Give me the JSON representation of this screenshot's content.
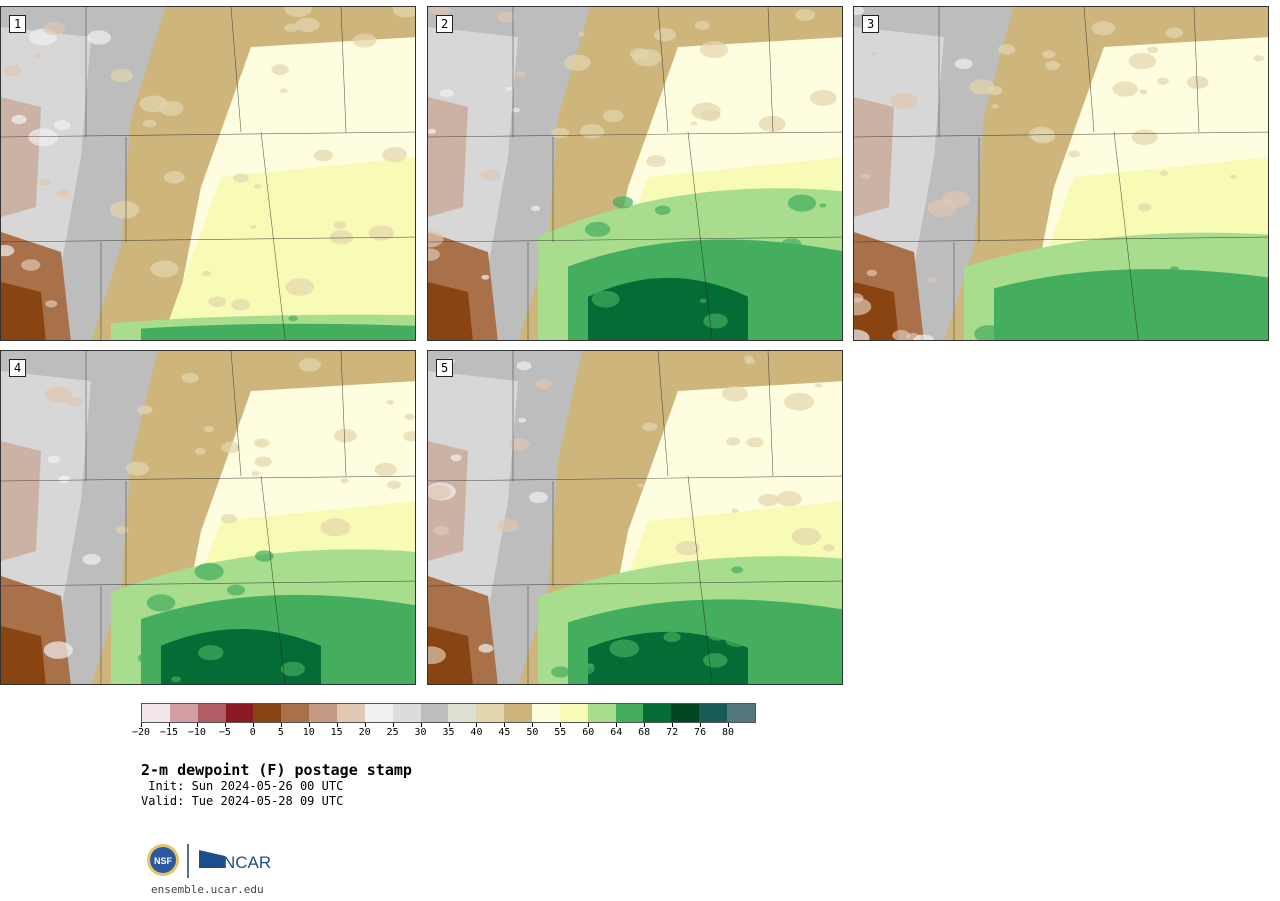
{
  "panels": [
    {
      "label": "1",
      "variant": "dry",
      "green": 0.08
    },
    {
      "label": "2",
      "variant": "wet",
      "green": 0.45
    },
    {
      "label": "3",
      "variant": "mid",
      "green": 0.32
    },
    {
      "label": "4",
      "variant": "wet",
      "green": 0.4
    },
    {
      "label": "5",
      "variant": "mid",
      "green": 0.38
    }
  ],
  "colorbar": {
    "colors": [
      "#f3e6e8",
      "#d29ea3",
      "#b35c65",
      "#8b1a23",
      "#8a4412",
      "#a8714a",
      "#c49a82",
      "#e0c8b4",
      "#f1f1f1",
      "#dcdcdc",
      "#bdbdbd",
      "#dddfd3",
      "#e3d6ae",
      "#cdb57c",
      "#fffde0",
      "#f7fbb6",
      "#a8dd8d",
      "#44ad5e",
      "#036d35",
      "#014522",
      "#185c57",
      "#52777d"
    ],
    "ticks": [
      "−20",
      "−15",
      "−10",
      "−5",
      "0",
      "5",
      "10",
      "15",
      "20",
      "25",
      "30",
      "35",
      "40",
      "45",
      "50",
      "55",
      "60",
      "64",
      "68",
      "72",
      "76",
      "80"
    ]
  },
  "title": "2-m dewpoint (F) postage stamp",
  "init": " Init: Sun 2024-05-26 00 UTC",
  "valid": "Valid: Tue 2024-05-28 09 UTC",
  "logos": {
    "nsf": "NSF",
    "ncar": "NCAR"
  },
  "site": "ensemble.ucar.edu"
}
